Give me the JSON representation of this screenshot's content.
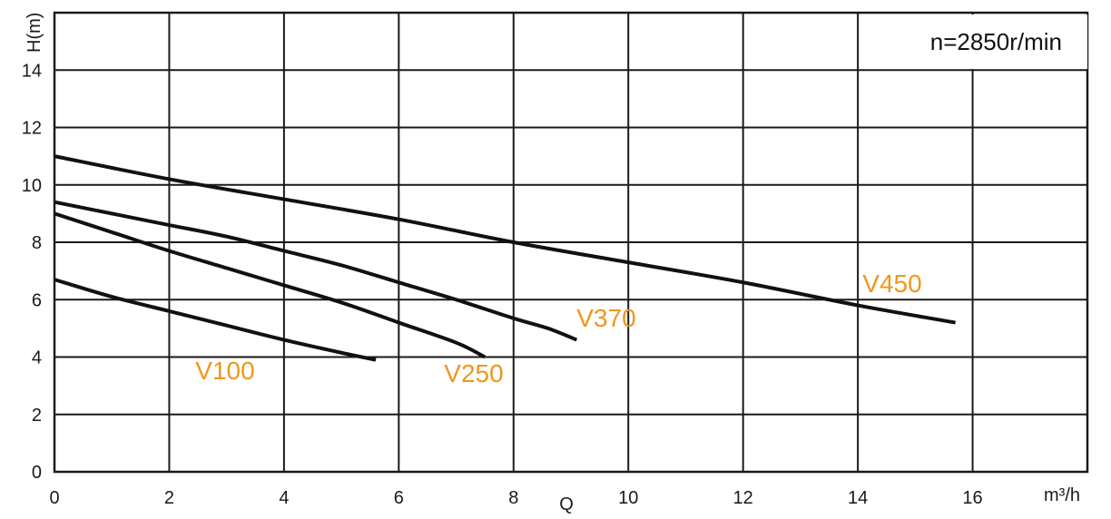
{
  "chart_data": {
    "type": "line",
    "title": "",
    "annotation": "n=2850r/min",
    "xlabel": "Q",
    "x_unit": "m³/h",
    "ylabel": "H(m)",
    "xlim": [
      0,
      18
    ],
    "ylim": [
      0,
      16
    ],
    "x_ticks": [
      0,
      2,
      4,
      6,
      8,
      10,
      12,
      14,
      16
    ],
    "y_ticks": [
      0,
      2,
      4,
      6,
      8,
      10,
      12,
      14
    ],
    "grid": true,
    "colors": {
      "curve": "#111111",
      "label": "#F0961E",
      "grid": "#1a1a1a"
    },
    "series": [
      {
        "name": "V100",
        "x": [
          0,
          1,
          2,
          3,
          4,
          5,
          5.6
        ],
        "y": [
          6.7,
          6.1,
          5.6,
          5.1,
          4.6,
          4.15,
          3.9
        ]
      },
      {
        "name": "V250",
        "x": [
          0,
          1,
          2,
          3,
          4,
          5,
          6,
          7,
          7.5
        ],
        "y": [
          9.0,
          8.35,
          7.7,
          7.1,
          6.5,
          5.9,
          5.2,
          4.5,
          4.0
        ]
      },
      {
        "name": "V370",
        "x": [
          0,
          1,
          2,
          3,
          4,
          5,
          6,
          7,
          8,
          8.6,
          9.1
        ],
        "y": [
          9.4,
          9.0,
          8.6,
          8.2,
          7.7,
          7.2,
          6.6,
          6.0,
          5.35,
          5.0,
          4.6
        ]
      },
      {
        "name": "V450",
        "x": [
          0,
          2,
          4,
          6,
          8,
          10,
          12,
          14,
          15.7
        ],
        "y": [
          11.0,
          10.2,
          9.5,
          8.8,
          8.0,
          7.3,
          6.6,
          5.8,
          5.2
        ]
      }
    ]
  }
}
